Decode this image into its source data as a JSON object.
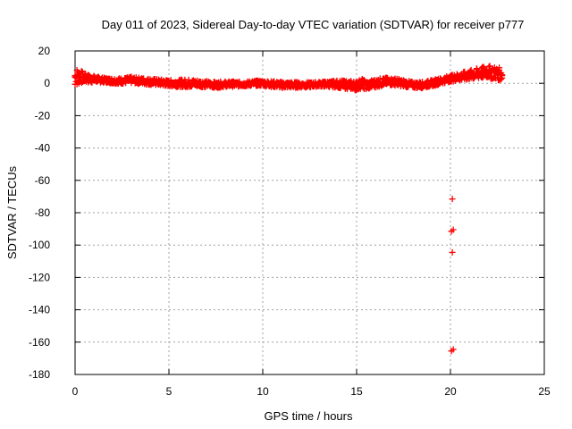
{
  "chart_data": {
    "type": "scatter",
    "title": "Day 011 of 2023, Sidereal Day-to-day VTEC variation (SDTVAR) for receiver p777",
    "xlabel": "GPS time / hours",
    "ylabel": "SDTVAR / TECUs",
    "xlim": [
      0,
      25
    ],
    "ylim": [
      -180,
      20
    ],
    "xticks": [
      0,
      5,
      10,
      15,
      20,
      25
    ],
    "yticks": [
      20,
      0,
      -20,
      -40,
      -60,
      -80,
      -100,
      -120,
      -140,
      -160,
      -180
    ],
    "grid": true,
    "marker": "+",
    "color": "#ff0000",
    "main_trend": [
      [
        0.0,
        4
      ],
      [
        0.3,
        4
      ],
      [
        0.6,
        3
      ],
      [
        1.0,
        2.5
      ],
      [
        1.5,
        2
      ],
      [
        2.0,
        1.5
      ],
      [
        2.5,
        1.5
      ],
      [
        3.0,
        2
      ],
      [
        3.5,
        1.5
      ],
      [
        4.0,
        1
      ],
      [
        4.5,
        0.5
      ],
      [
        5.0,
        0
      ],
      [
        5.5,
        0
      ],
      [
        6.0,
        0
      ],
      [
        6.5,
        0
      ],
      [
        7.0,
        -0.5
      ],
      [
        7.5,
        -1
      ],
      [
        8.0,
        -0.5
      ],
      [
        8.5,
        -0.5
      ],
      [
        9.0,
        -0.5
      ],
      [
        9.5,
        0
      ],
      [
        10.0,
        0
      ],
      [
        10.5,
        -0.5
      ],
      [
        11.0,
        -1
      ],
      [
        11.5,
        -1
      ],
      [
        12.0,
        -1
      ],
      [
        12.5,
        -1
      ],
      [
        13.0,
        -0.5
      ],
      [
        13.5,
        -0.5
      ],
      [
        14.0,
        -0.5
      ],
      [
        14.5,
        -1
      ],
      [
        15.0,
        -1.5
      ],
      [
        15.3,
        0
      ],
      [
        15.5,
        -1.5
      ],
      [
        16.0,
        0
      ],
      [
        16.5,
        1
      ],
      [
        17.0,
        1
      ],
      [
        17.5,
        0
      ],
      [
        18.0,
        -1
      ],
      [
        18.5,
        -1
      ],
      [
        19.0,
        0
      ],
      [
        19.5,
        1.5
      ],
      [
        20.0,
        3
      ],
      [
        20.5,
        4
      ],
      [
        21.0,
        5
      ],
      [
        21.5,
        6
      ],
      [
        22.0,
        7
      ],
      [
        22.5,
        6
      ],
      [
        22.8,
        5
      ]
    ],
    "spread": [
      [
        0.0,
        6
      ],
      [
        0.5,
        3
      ],
      [
        1.5,
        1.5
      ],
      [
        3.0,
        2
      ],
      [
        5.0,
        2
      ],
      [
        6.0,
        2.5
      ],
      [
        7.0,
        2
      ],
      [
        9.0,
        1.5
      ],
      [
        11.0,
        2
      ],
      [
        13.0,
        1.5
      ],
      [
        15.0,
        3
      ],
      [
        16.5,
        2.5
      ],
      [
        18.0,
        2
      ],
      [
        20.0,
        2
      ],
      [
        21.0,
        3
      ],
      [
        22.0,
        4
      ],
      [
        22.8,
        4
      ]
    ],
    "outliers": [
      {
        "x": 20.1,
        "y": -71.5
      },
      {
        "x": 20.05,
        "y": -91.5
      },
      {
        "x": 20.15,
        "y": -90.5
      },
      {
        "x": 20.1,
        "y": -104.5
      },
      {
        "x": 20.05,
        "y": -165.5
      },
      {
        "x": 20.15,
        "y": -164.5
      }
    ]
  }
}
